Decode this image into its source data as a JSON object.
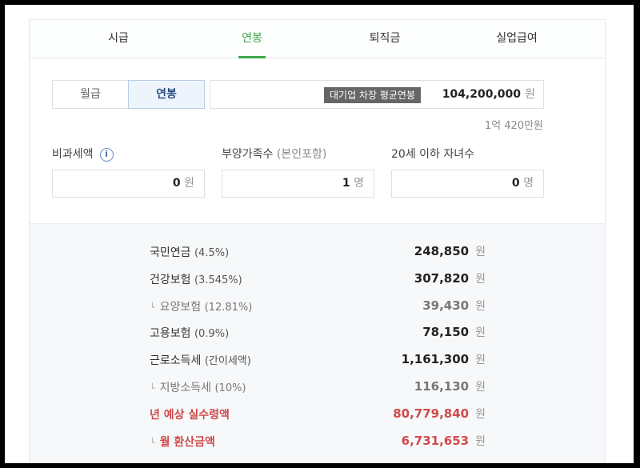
{
  "tabs": [
    {
      "label": "시급"
    },
    {
      "label": "연봉",
      "active": true
    },
    {
      "label": "퇴직금"
    },
    {
      "label": "실업급여"
    }
  ],
  "toggle": {
    "monthly": "월급",
    "annual": "연봉",
    "selected": "연봉"
  },
  "amount": {
    "badge": "대기업 차장 평균연봉",
    "value": "104,200,000",
    "unit": "원",
    "korean": "1억 420만원"
  },
  "fields": {
    "nontax": {
      "label": "비과세액",
      "value": "0",
      "unit": "원",
      "info_icon": "i"
    },
    "dependents": {
      "label": "부양가족수",
      "note": "(본인포함)",
      "value": "1",
      "unit": "명"
    },
    "children": {
      "label": "20세 이하 자녀수",
      "value": "0",
      "unit": "명"
    }
  },
  "results": [
    {
      "label": "국민연금",
      "pct": "(4.5%)",
      "value": "248,850",
      "unit": "원",
      "type": "normal"
    },
    {
      "label": "건강보험",
      "pct": "(3.545%)",
      "value": "307,820",
      "unit": "원",
      "type": "normal"
    },
    {
      "label": "요양보험",
      "pct": "(12.81%)",
      "value": "39,430",
      "unit": "원",
      "type": "minor"
    },
    {
      "label": "고용보험",
      "pct": "(0.9%)",
      "value": "78,150",
      "unit": "원",
      "type": "normal"
    },
    {
      "label": "근로소득세",
      "pct": "(간이세액)",
      "value": "1,161,300",
      "unit": "원",
      "type": "normal"
    },
    {
      "label": "지방소득세",
      "pct": "(10%)",
      "value": "116,130",
      "unit": "원",
      "type": "minor"
    },
    {
      "label": "년 예상 실수령액",
      "pct": "",
      "value": "80,779,840",
      "unit": "원",
      "type": "red"
    },
    {
      "label": "월 환산금액",
      "pct": "",
      "value": "6,731,653",
      "unit": "원",
      "type": "red-minor"
    }
  ],
  "colors": {
    "accent": "#3fa64a",
    "highlight": "#d04a4a",
    "selected_bg": "#eef4fb"
  }
}
